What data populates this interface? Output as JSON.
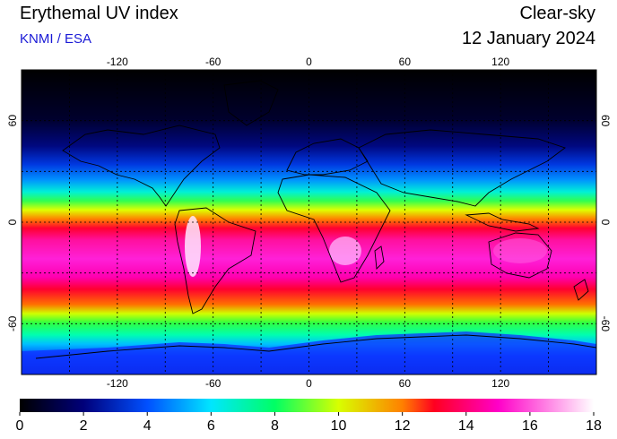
{
  "header": {
    "title": "Erythemal UV index",
    "source": "KNMI / ESA",
    "product": "Clear-sky",
    "date": "12 January 2024"
  },
  "map": {
    "projection": "equirectangular",
    "lon_range": [
      -180,
      180
    ],
    "lat_range": [
      -90,
      90
    ],
    "lon_ticks": [
      -120,
      -60,
      0,
      60,
      120
    ],
    "lon_tick_labels": [
      "-120",
      "-60",
      "0",
      "60",
      "120"
    ],
    "lat_ticks": [
      60,
      0,
      -60
    ],
    "lat_tick_labels": [
      "60",
      "0",
      "-60"
    ],
    "gridlines": "dashed every 30 degrees",
    "colors": {
      "background": "#000000",
      "coastline": "#000000",
      "grid": "#000000"
    }
  },
  "colorbar": {
    "min": 0,
    "max": 18,
    "tick_labels": [
      "0",
      "2",
      "4",
      "6",
      "8",
      "10",
      "12",
      "14",
      "16",
      "18"
    ],
    "stops": [
      {
        "value": 0,
        "color": "#000000"
      },
      {
        "value": 2,
        "color": "#00007a"
      },
      {
        "value": 4,
        "color": "#0050ff"
      },
      {
        "value": 6,
        "color": "#00e6ff"
      },
      {
        "value": 8,
        "color": "#00ff64"
      },
      {
        "value": 10,
        "color": "#d8ff00"
      },
      {
        "value": 12,
        "color": "#ff8000"
      },
      {
        "value": 13,
        "color": "#ff0020"
      },
      {
        "value": 15,
        "color": "#ff00c8"
      },
      {
        "value": 18,
        "color": "#ffffff"
      }
    ]
  }
}
